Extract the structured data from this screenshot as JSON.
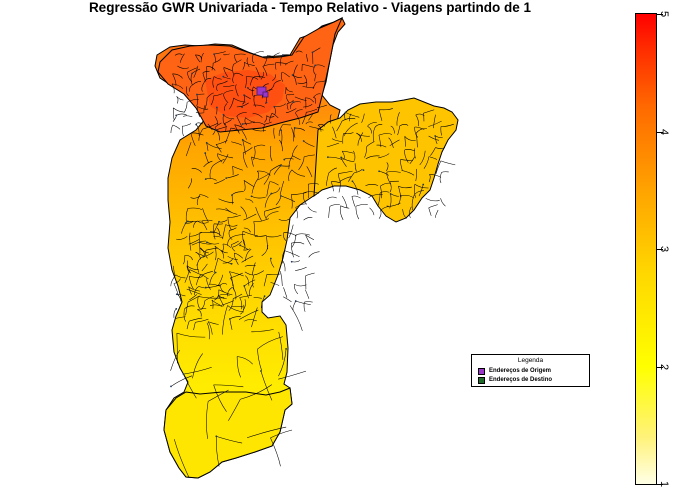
{
  "title": "Regressão GWR Univariada - Tempo Relativo - Viagens partindo de 1",
  "legend": {
    "title": "Legenda",
    "items": [
      {
        "label": "Endereços de Origem",
        "color": "#9a37c8"
      },
      {
        "label": "Endereços de Destino",
        "color": "#1f6b2a"
      }
    ]
  },
  "colorbar": {
    "min": 1,
    "max": 5,
    "ticks": [
      "1",
      "2",
      "3",
      "4",
      "5"
    ],
    "colors_low_to_high": [
      "#ffffe6",
      "#ffff00",
      "#ffa500",
      "#ff0000"
    ]
  },
  "map": {
    "fill_north": "#ff5a10",
    "fill_center": "#ffb300",
    "fill_south": "#ffe600",
    "fill_east": "#ffc400",
    "boundary_color": "#000000"
  }
}
